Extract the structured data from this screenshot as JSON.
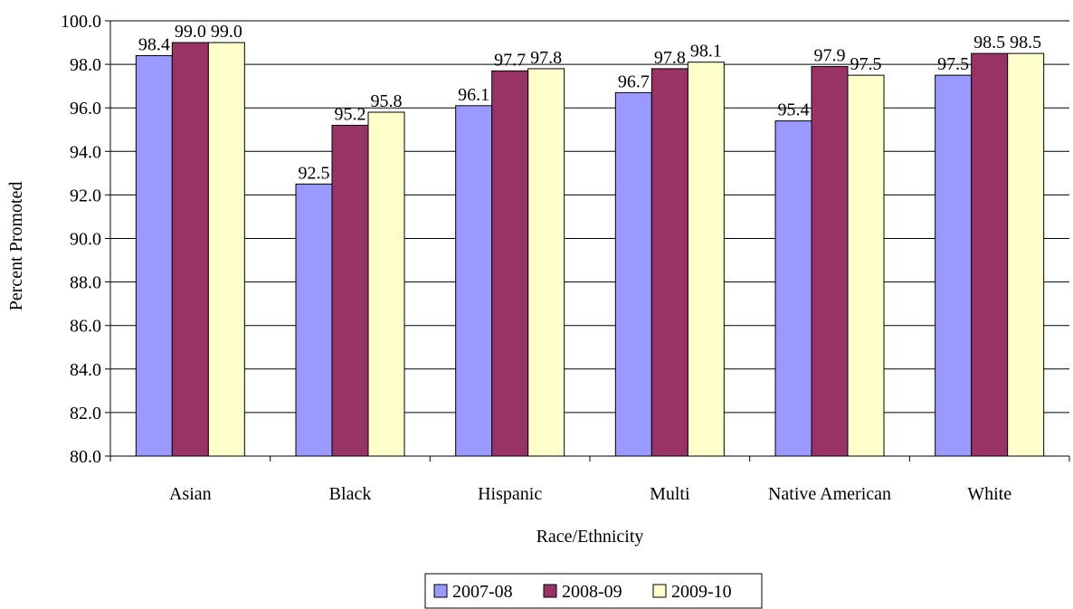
{
  "chart_data": {
    "type": "bar",
    "title": "",
    "xlabel": "Race/Ethnicity",
    "ylabel": "Percent Promoted",
    "ylim": [
      80,
      100
    ],
    "ytick_step": 2,
    "ytick_labels": [
      "80.0",
      "82.0",
      "84.0",
      "86.0",
      "88.0",
      "90.0",
      "92.0",
      "94.0",
      "96.0",
      "98.0",
      "100.0"
    ],
    "categories": [
      "Asian",
      "Black",
      "Hispanic",
      "Multi",
      "Native American",
      "White"
    ],
    "series": [
      {
        "name": "2007-08",
        "color": "#9999FF",
        "values": [
          98.4,
          92.5,
          96.1,
          96.7,
          95.4,
          97.5
        ]
      },
      {
        "name": "2008-09",
        "color": "#993366",
        "values": [
          99.0,
          95.2,
          97.7,
          97.8,
          97.9,
          98.5
        ]
      },
      {
        "name": "2009-10",
        "color": "#FFFFCC",
        "values": [
          99.0,
          95.8,
          97.8,
          98.1,
          97.5,
          98.5
        ]
      }
    ],
    "data_label_decimals": 1,
    "grid": true,
    "legend_position": "bottom"
  }
}
